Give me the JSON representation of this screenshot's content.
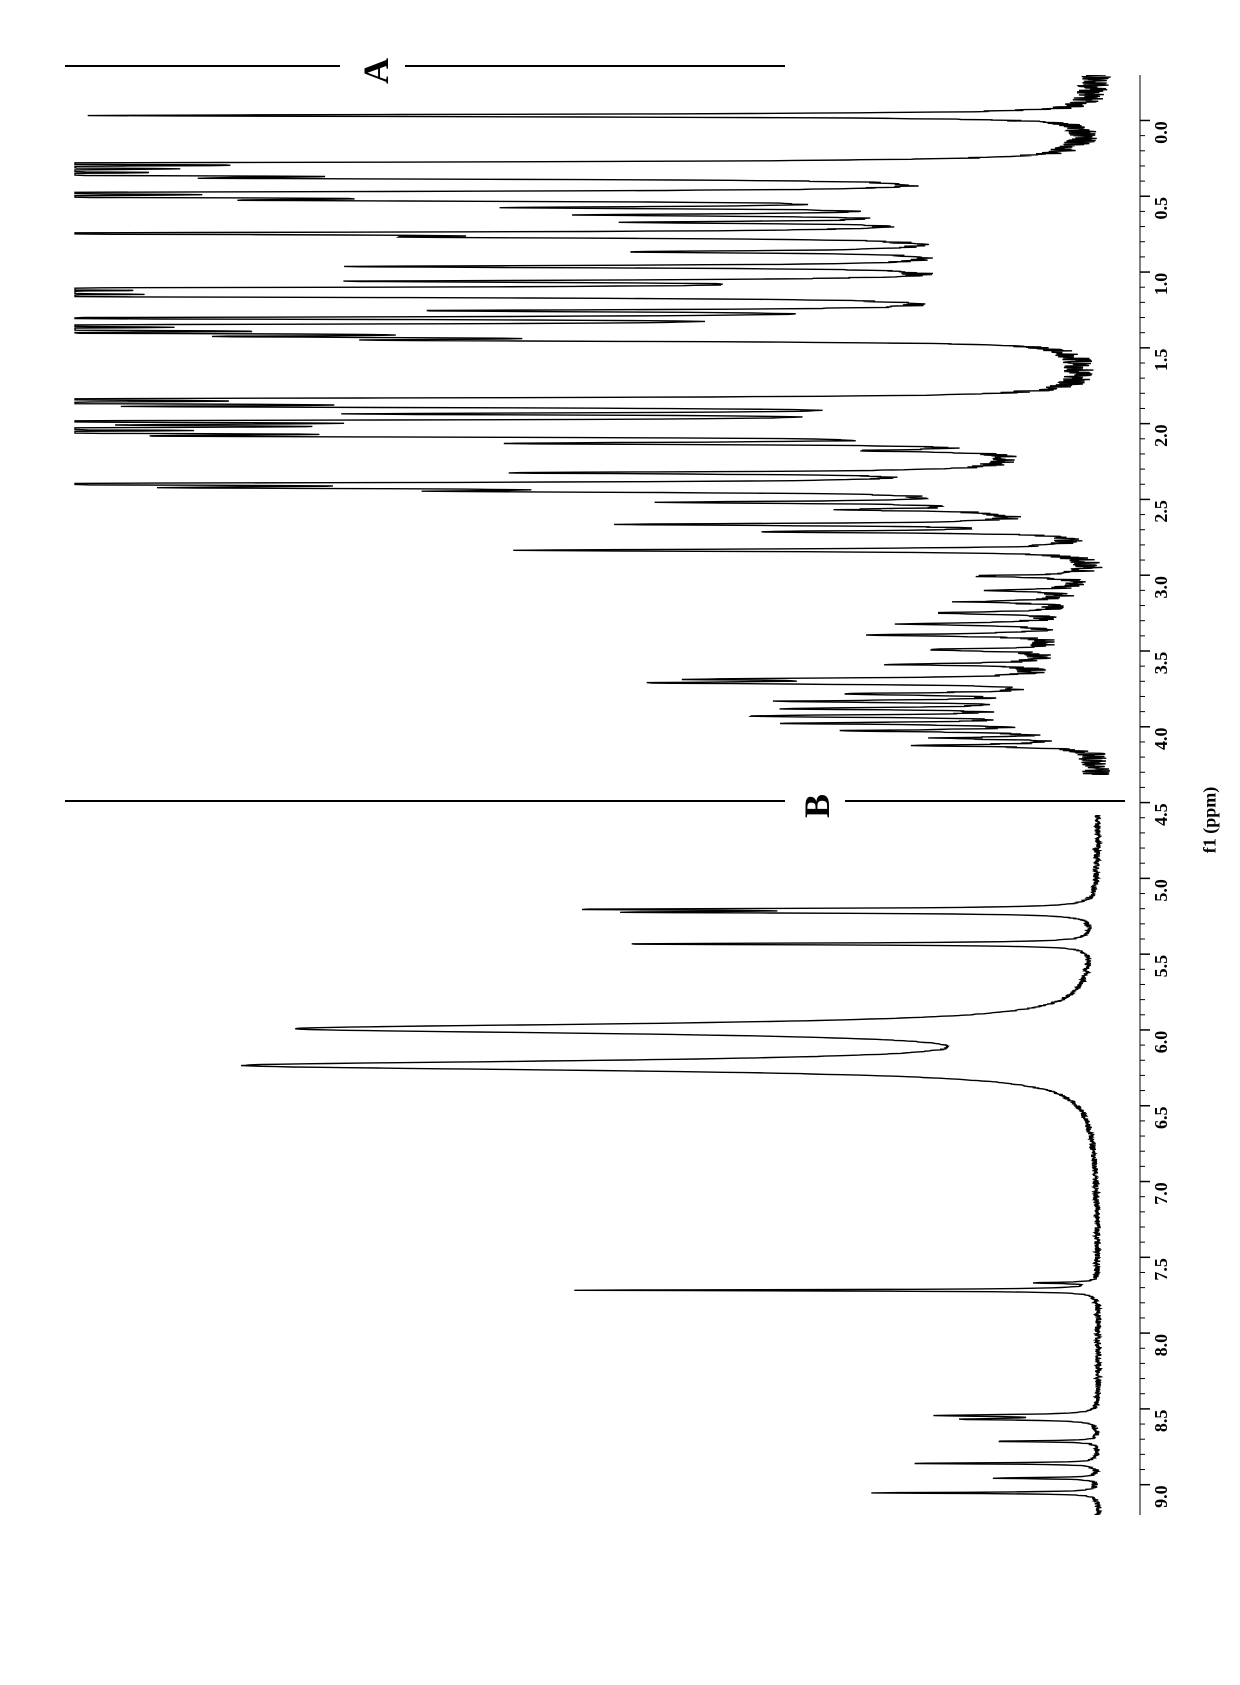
{
  "figure": {
    "orientation": "rotated-90-counterclockwise",
    "background_color": "#ffffff",
    "line_color": "#000000",
    "panels": [
      {
        "id": "A",
        "label": "A",
        "label_fontsize": 36,
        "label_fontweight": "bold",
        "type": "nmr-spectrum",
        "description": "1H NMR spectrum with many peaks (complex mixture)",
        "peaks_ppm": [
          {
            "ppm": 0.25,
            "h": 0.95
          },
          {
            "ppm": 0.9,
            "h": 0.95
          },
          {
            "ppm": 0.95,
            "h": 0.85
          },
          {
            "ppm": 1.0,
            "h": 0.9
          },
          {
            "ppm": 1.05,
            "h": 0.95
          },
          {
            "ppm": 1.1,
            "h": 0.6
          },
          {
            "ppm": 1.3,
            "h": 0.95
          },
          {
            "ppm": 1.35,
            "h": 0.9
          },
          {
            "ppm": 1.4,
            "h": 0.55
          },
          {
            "ppm": 1.5,
            "h": 0.4
          },
          {
            "ppm": 1.6,
            "h": 0.35
          },
          {
            "ppm": 1.7,
            "h": 0.3
          },
          {
            "ppm": 1.85,
            "h": 0.95
          },
          {
            "ppm": 1.9,
            "h": 0.4
          },
          {
            "ppm": 2.1,
            "h": 0.3
          },
          {
            "ppm": 2.3,
            "h": 0.6
          },
          {
            "ppm": 2.5,
            "h": 0.55
          },
          {
            "ppm": 2.6,
            "h": 0.95
          },
          {
            "ppm": 2.65,
            "h": 0.95
          },
          {
            "ppm": 2.7,
            "h": 0.95
          },
          {
            "ppm": 2.9,
            "h": 0.5
          },
          {
            "ppm": 3.0,
            "h": 0.95
          },
          {
            "ppm": 3.1,
            "h": 0.95
          },
          {
            "ppm": 3.15,
            "h": 0.95
          },
          {
            "ppm": 3.2,
            "h": 0.7
          },
          {
            "ppm": 3.25,
            "h": 0.6
          },
          {
            "ppm": 3.3,
            "h": 0.55
          },
          {
            "ppm": 4.1,
            "h": 0.95
          },
          {
            "ppm": 4.15,
            "h": 0.95
          },
          {
            "ppm": 4.2,
            "h": 0.7
          },
          {
            "ppm": 4.3,
            "h": 0.6
          },
          {
            "ppm": 4.4,
            "h": 0.95
          },
          {
            "ppm": 4.45,
            "h": 0.6
          },
          {
            "ppm": 4.5,
            "h": 0.95
          },
          {
            "ppm": 4.55,
            "h": 0.95
          },
          {
            "ppm": 4.6,
            "h": 0.7
          },
          {
            "ppm": 4.7,
            "h": 0.5
          },
          {
            "ppm": 4.8,
            "h": 0.15
          },
          {
            "ppm": 5.1,
            "h": 0.45
          },
          {
            "ppm": 5.25,
            "h": 0.95
          },
          {
            "ppm": 5.3,
            "h": 0.6
          },
          {
            "ppm": 5.35,
            "h": 0.4
          },
          {
            "ppm": 5.5,
            "h": 0.3
          },
          {
            "ppm": 5.6,
            "h": 0.15
          },
          {
            "ppm": 5.8,
            "h": 0.4
          },
          {
            "ppm": 5.9,
            "h": 0.3
          },
          {
            "ppm": 6.15,
            "h": 0.55
          },
          {
            "ppm": 6.5,
            "h": 0.1
          },
          {
            "ppm": 6.7,
            "h": 0.08
          },
          {
            "ppm": 6.85,
            "h": 0.1
          },
          {
            "ppm": 7.0,
            "h": 0.12
          },
          {
            "ppm": 7.15,
            "h": 0.15
          },
          {
            "ppm": 7.3,
            "h": 0.18
          },
          {
            "ppm": 7.5,
            "h": 0.12
          },
          {
            "ppm": 7.7,
            "h": 0.15
          },
          {
            "ppm": 7.9,
            "h": 0.3
          },
          {
            "ppm": 7.95,
            "h": 0.35
          },
          {
            "ppm": 8.1,
            "h": 0.2
          },
          {
            "ppm": 8.2,
            "h": 0.25
          },
          {
            "ppm": 8.3,
            "h": 0.25
          },
          {
            "ppm": 8.4,
            "h": 0.3
          },
          {
            "ppm": 8.5,
            "h": 0.25
          },
          {
            "ppm": 8.6,
            "h": 0.2
          },
          {
            "ppm": 8.7,
            "h": 0.12
          },
          {
            "ppm": 8.8,
            "h": 0.15
          }
        ],
        "baseline_hump_ranges": [
          {
            "start_ppm": 0.8,
            "end_ppm": 3.3,
            "height": 0.12
          },
          {
            "start_ppm": 4.7,
            "end_ppm": 5.9,
            "height": 0.1
          },
          {
            "start_ppm": 6.4,
            "end_ppm": 8.9,
            "height": 0.04
          }
        ],
        "baseline_y": 0.02,
        "noise_amplitude": 0.015
      },
      {
        "id": "B",
        "label": "B",
        "label_fontsize": 36,
        "label_fontweight": "bold",
        "type": "nmr-spectrum",
        "description": "1H NMR spectrum with fewer, sharper peaks",
        "peaks_ppm": [
          {
            "ppm": 0.98,
            "h": 0.45,
            "w": 0.015
          },
          {
            "ppm": 1.02,
            "h": 0.4,
            "w": 0.015
          },
          {
            "ppm": 1.45,
            "h": 0.45,
            "w": 0.015
          },
          {
            "ppm": 2.6,
            "h": 0.75,
            "w": 0.08
          },
          {
            "ppm": 3.1,
            "h": 0.8,
            "w": 0.08
          },
          {
            "ppm": 6.05,
            "h": 0.06,
            "w": 0.01
          },
          {
            "ppm": 6.15,
            "h": 0.5,
            "w": 0.01
          },
          {
            "ppm": 7.85,
            "h": 0.15,
            "w": 0.015
          },
          {
            "ppm": 7.9,
            "h": 0.12,
            "w": 0.015
          },
          {
            "ppm": 8.2,
            "h": 0.1,
            "w": 0.01
          },
          {
            "ppm": 8.5,
            "h": 0.18,
            "w": 0.01
          },
          {
            "ppm": 8.7,
            "h": 0.1,
            "w": 0.01
          },
          {
            "ppm": 8.9,
            "h": 0.22,
            "w": 0.01
          }
        ],
        "baseline_y": 0.02,
        "noise_amplitude": 0.003
      }
    ],
    "axis": {
      "xmin_ppm": -0.3,
      "xmax_ppm": 9.2,
      "major_ticks_ppm": [
        0.0,
        0.5,
        1.0,
        1.5,
        2.0,
        2.5,
        3.0,
        3.5,
        4.0,
        4.5,
        5.0,
        5.5,
        6.0,
        6.5,
        7.0,
        7.5,
        8.0,
        8.5,
        9.0
      ],
      "tick_labels": [
        "0.0",
        "0.5",
        "1.0",
        "1.5",
        "2.0",
        "2.5",
        "3.0",
        "3.5",
        "4.0",
        "4.5",
        "5.0",
        "5.5",
        "6.0",
        "6.5",
        "7.0",
        "7.5",
        "8.0",
        "8.5",
        "9.0"
      ],
      "minor_tick_count_between": 4,
      "label": "f1 (ppm)",
      "label_fontsize": 18,
      "tick_fontsize": 18,
      "tick_length_major": 10,
      "tick_length_minor": 5,
      "axis_line_width": 1
    }
  }
}
